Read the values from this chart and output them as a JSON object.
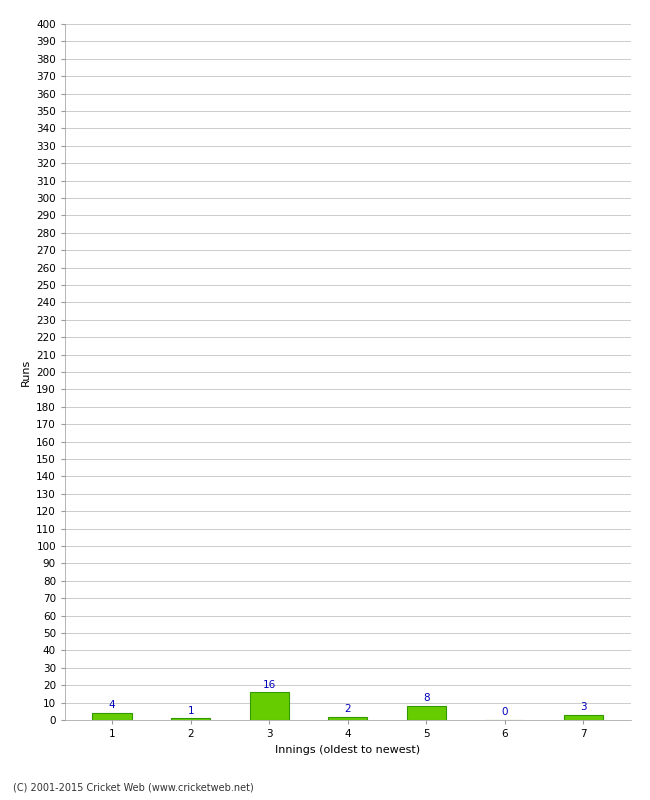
{
  "categories": [
    "1",
    "2",
    "3",
    "4",
    "5",
    "6",
    "7"
  ],
  "values": [
    4,
    1,
    16,
    2,
    8,
    0,
    3
  ],
  "bar_color": "#66cc00",
  "bar_edge_color": "#339900",
  "annotation_color": "#0000bb",
  "xlabel": "Innings (oldest to newest)",
  "ylabel": "Runs",
  "ylim": [
    0,
    400
  ],
  "ytick_step": 10,
  "background_color": "#ffffff",
  "grid_color": "#cccccc",
  "footer": "(C) 2001-2015 Cricket Web (www.cricketweb.net)",
  "annotation_fontsize": 7.5,
  "axis_fontsize": 7.5,
  "label_fontsize": 8,
  "bar_width": 0.5
}
